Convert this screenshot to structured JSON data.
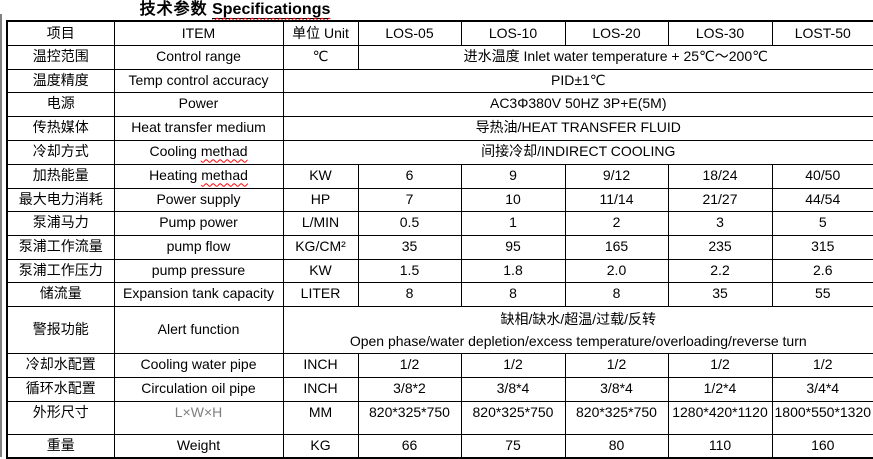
{
  "title": {
    "zh": "技术参数",
    "en": "Specificationgs"
  },
  "table": {
    "header": [
      "项目",
      "ITEM",
      "单位 Unit",
      "LOS-05",
      "LOS-10",
      "LOS-20",
      "LOS-30",
      "LOST-50"
    ],
    "header_names": [
      "col-item-zh",
      "col-item-en",
      "col-unit",
      "col-los-05",
      "col-los-10",
      "col-los-20",
      "col-los-30",
      "col-lost-50"
    ],
    "rows": [
      {
        "id": "control-range",
        "zh": "温控范围",
        "en": "Control range",
        "unit": "℃",
        "merged": "models",
        "value": "进水温度 Inlet water temperature + 25℃～200℃"
      },
      {
        "id": "temp-control-accuracy",
        "zh": "温度精度",
        "en": "Temp control accuracy",
        "merged": "all",
        "value": "PID±1℃"
      },
      {
        "id": "power",
        "zh": "电源",
        "en": "Power",
        "merged": "all",
        "value": "AC3Φ380V 50HZ 3P+E(5M)"
      },
      {
        "id": "heat-transfer-medium",
        "zh": "传热媒体",
        "en": "Heat transfer medium",
        "merged": "all",
        "value": "导热油/HEAT TRANSFER FLUID"
      },
      {
        "id": "cooling-method",
        "zh": "冷却方式",
        "en": "Cooling methad",
        "misspelled": "methad",
        "merged": "all",
        "value": "间接冷却/INDIRECT COOLING"
      },
      {
        "id": "heating-energy",
        "zh": "加热能量",
        "en": "Heating methad",
        "misspelled": "methad",
        "unit": "KW",
        "values": [
          "6",
          "9",
          "9/12",
          "18/24",
          "40/50"
        ]
      },
      {
        "id": "max-power-consumption",
        "zh": "最大电力消耗",
        "en": "Power supply",
        "unit": "HP",
        "values": [
          "7",
          "10",
          "11/14",
          "21/27",
          "44/54"
        ]
      },
      {
        "id": "pump-power",
        "zh": "泵浦马力",
        "en": "Pump power",
        "unit": "L/MIN",
        "values": [
          "0.5",
          "1",
          "2",
          "3",
          "5"
        ]
      },
      {
        "id": "pump-flow",
        "zh": "泵浦工作流量",
        "en": "pump flow",
        "unit": "KG/CM²",
        "values": [
          "35",
          "95",
          "165",
          "235",
          "315"
        ]
      },
      {
        "id": "pump-pressure",
        "zh": "泵浦工作压力",
        "en": "pump pressure",
        "unit": "KW",
        "values": [
          "1.5",
          "1.8",
          "2.0",
          "2.2",
          "2.6"
        ]
      },
      {
        "id": "expansion-tank-capacity",
        "zh": "储流量",
        "en": "Expansion tank capacity",
        "unit": "LITER",
        "values": [
          "8",
          "8",
          "8",
          "35",
          "55"
        ]
      },
      {
        "id": "alert-function",
        "zh": "警报功能",
        "en": "Alert function",
        "merged": "all",
        "kind": "alert",
        "value_lines": [
          "缺相/缺水/超温/过载/反转",
          "Open phase/water depletion/excess temperature/overloading/reverse turn"
        ]
      },
      {
        "id": "cooling-water-pipe",
        "zh": "冷却水配置",
        "en": "Cooling water pipe",
        "unit": "INCH",
        "values": [
          "1/2",
          "1/2",
          "1/2",
          "1/2",
          "1/2"
        ]
      },
      {
        "id": "circulation-oil-pipe",
        "zh": "循环水配置",
        "en": "Circulation oil pipe",
        "unit": "INCH",
        "values": [
          "3/8*2",
          "3/8*4",
          "3/8*4",
          "1/2*4",
          "3/4*4"
        ]
      },
      {
        "id": "dimensions",
        "zh": "外形尺寸",
        "en": "L×W×H",
        "en_muted": true,
        "unit": "MM",
        "kind": "dims",
        "values": [
          "820*325*750",
          "820*325*750",
          "820*325*750",
          "1280*420*1120",
          "1800*550*1320"
        ]
      },
      {
        "id": "weight",
        "zh": "重量",
        "en": "Weight",
        "unit": "KG",
        "values": [
          "66",
          "75",
          "80",
          "110",
          "160"
        ]
      }
    ]
  },
  "colors": {
    "muted_text": "#7f7f7f",
    "squiggle": "#ff0000",
    "border": "#000000"
  }
}
